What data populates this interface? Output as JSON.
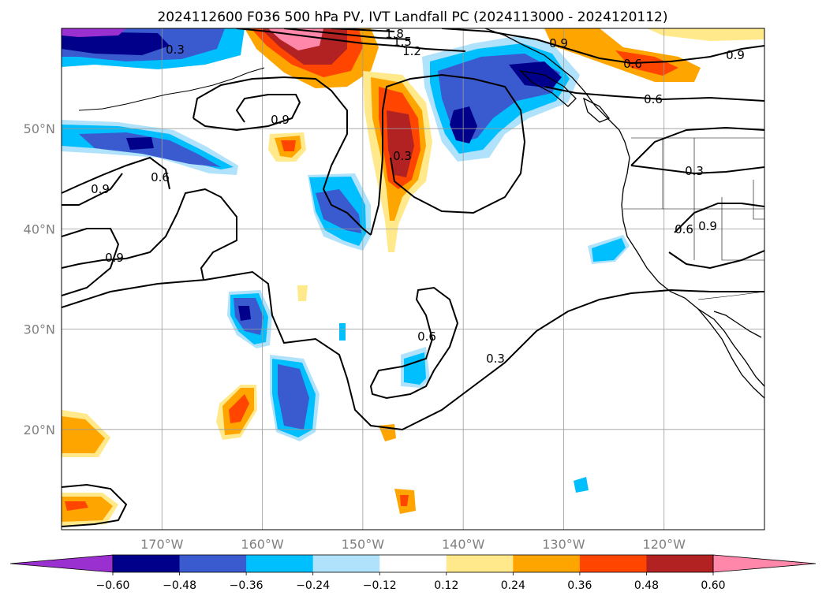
{
  "title": "2024112600 F036 500 hPa PV, IVT Landfall PC (2024113000 - 2024120112)",
  "map": {
    "lon_range": [
      -180,
      -110
    ],
    "lat_range": [
      10,
      60
    ],
    "lon_ticks": [
      -170,
      -160,
      -150,
      -140,
      -130,
      -120
    ],
    "lat_ticks": [
      20,
      30,
      40,
      50
    ],
    "lon_tick_labels": [
      "170°W",
      "160°W",
      "150°W",
      "140°W",
      "130°W",
      "120°W"
    ],
    "lat_tick_labels": [
      "20°N",
      "30°N",
      "40°N",
      "50°N"
    ],
    "grid": true
  },
  "colorbar": {
    "levels": [
      "−0.60",
      "−0.48",
      "−0.36",
      "−0.24",
      "−0.12",
      "0.12",
      "0.24",
      "0.36",
      "0.48",
      "0.60"
    ],
    "colors": [
      "#9b30d0",
      "#00008b",
      "#3a5bd0",
      "#00bfff",
      "#b0e2fb",
      "#ffffff",
      "#ffe98a",
      "#ffa500",
      "#ff4500",
      "#b22222",
      "#ff88aa"
    ],
    "extend": "both"
  },
  "contour_labels": [
    "1.8",
    "1.5",
    "1.2",
    "0.3",
    "0.9",
    "0.6",
    "0.6",
    "0.9",
    "0.6",
    "0.9",
    "0.9",
    "0.3",
    "0.6",
    "0.9",
    "0.9",
    "0.6",
    "0.3",
    "0.3"
  ]
}
